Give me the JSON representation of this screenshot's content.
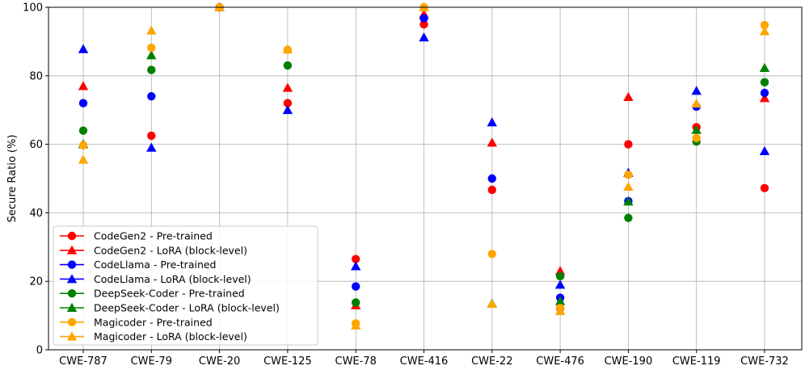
{
  "chart_data": {
    "type": "scatter",
    "title": "",
    "xlabel": "",
    "ylabel": "Secure Ratio (%)",
    "ylim": [
      0,
      100
    ],
    "yticks": [
      "0",
      "20",
      "40",
      "60",
      "80",
      "100"
    ],
    "grid": true,
    "legend_position": "bottom-left",
    "categories": [
      "CWE-787",
      "CWE-79",
      "CWE-20",
      "CWE-125",
      "CWE-78",
      "CWE-416",
      "CWE-22",
      "CWE-476",
      "CWE-190",
      "CWE-119",
      "CWE-732"
    ],
    "series": [
      {
        "name": "CodeGen2 - Pre-trained",
        "color": "#ff0000",
        "marker": "circle",
        "values": [
          null,
          62.5,
          100,
          72,
          26.5,
          95,
          46.7,
          12,
          60,
          65,
          47.2
        ]
      },
      {
        "name": "CodeGen2 - LoRA (block-level)",
        "color": "#ff0000",
        "marker": "triangle",
        "values": [
          77,
          null,
          100,
          76.5,
          13,
          98,
          60.5,
          23,
          73.8,
          null,
          73.5
        ]
      },
      {
        "name": "CodeLlama - Pre-trained",
        "color": "#0000ff",
        "marker": "circle",
        "values": [
          72,
          74,
          100,
          null,
          18.5,
          96.8,
          50,
          15.2,
          43.4,
          71,
          75
        ]
      },
      {
        "name": "CodeLlama - LoRA (block-level)",
        "color": "#0000ff",
        "marker": "triangle",
        "values": [
          87.8,
          59,
          100,
          70,
          24.4,
          91.2,
          66.4,
          19,
          51.7,
          75.6,
          58
        ]
      },
      {
        "name": "DeepSeek-Coder - Pre-trained",
        "color": "#008000",
        "marker": "circle",
        "values": [
          64,
          81.7,
          100,
          83,
          13.8,
          null,
          null,
          21.5,
          38.5,
          60.8,
          78.1
        ]
      },
      {
        "name": "DeepSeek-Coder - LoRA (block-level)",
        "color": "#008000",
        "marker": "triangle",
        "values": [
          60,
          86,
          100,
          null,
          null,
          null,
          13.5,
          14.2,
          43.3,
          64.2,
          82.3
        ]
      },
      {
        "name": "Magicoder - Pre-trained",
        "color": "#ffa500",
        "marker": "circle",
        "values": [
          59.7,
          88.2,
          100,
          87.6,
          7.7,
          100,
          28,
          12.2,
          51.1,
          61.8,
          94.8
        ]
      },
      {
        "name": "Magicoder - LoRA (block-level)",
        "color": "#ffa500",
        "marker": "triangle",
        "values": [
          55.5,
          93.2,
          100,
          87.7,
          7.1,
          100,
          13.4,
          11.3,
          47.6,
          71.9,
          93
        ]
      }
    ]
  }
}
